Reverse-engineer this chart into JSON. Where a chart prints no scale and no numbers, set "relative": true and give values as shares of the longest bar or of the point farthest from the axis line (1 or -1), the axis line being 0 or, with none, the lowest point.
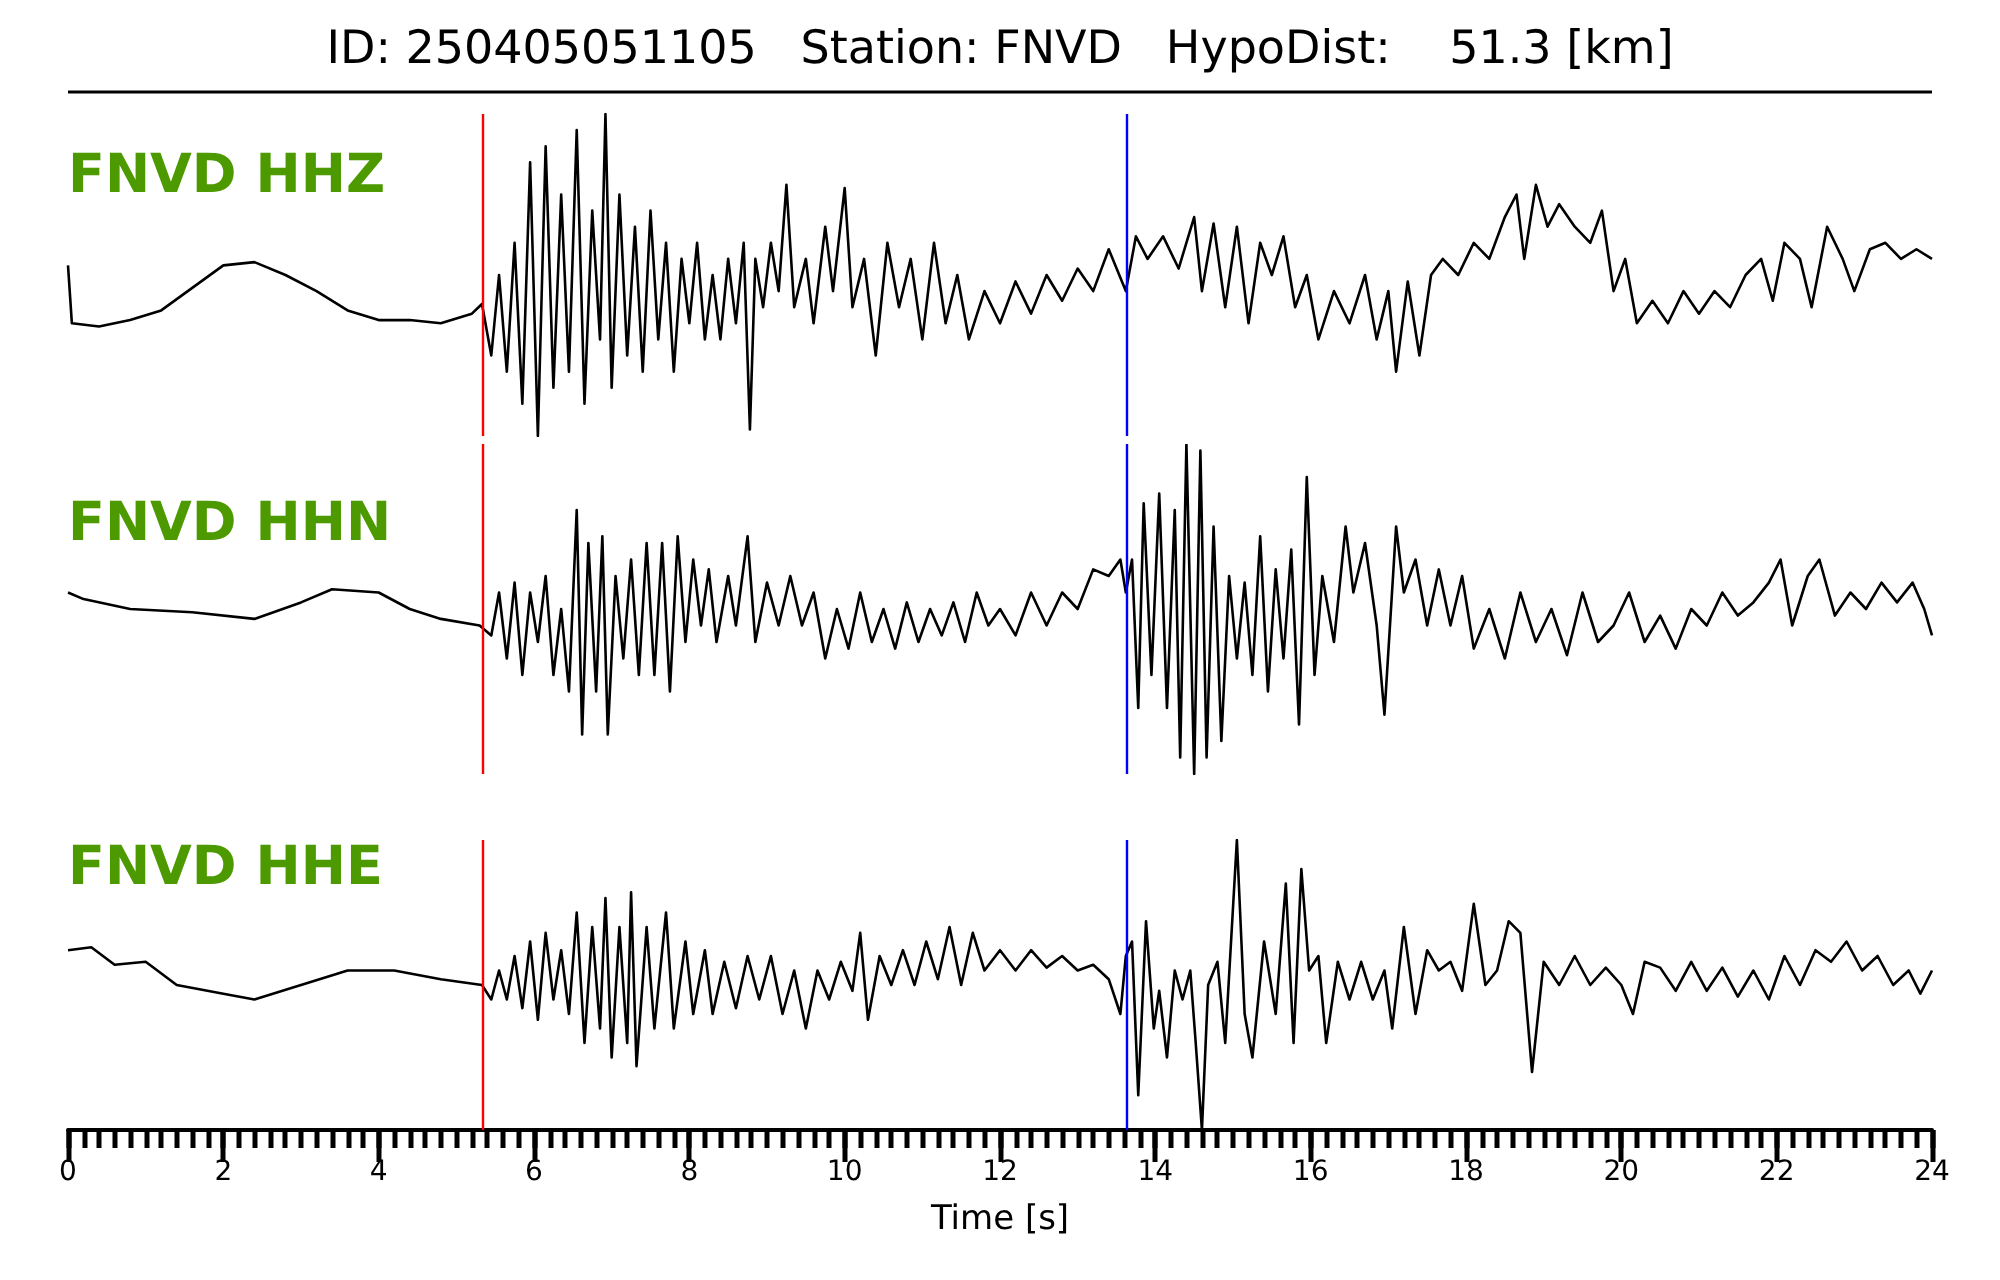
{
  "chart_data": [
    {
      "type": "line",
      "title": "ID: 250405051105   Station: FNVD   HypoDist:    51.3 [km]",
      "annotations": [
        "FNVD HHZ"
      ],
      "relative": true,
      "tick_labels": false,
      "xlim": [
        0,
        24
      ],
      "series": [
        {
          "color": "#000000",
          "x": [
            0,
            0.05,
            0.4,
            0.8,
            1.2,
            1.6,
            2.0,
            2.4,
            2.8,
            3.2,
            3.6,
            4.0,
            4.4,
            4.8,
            5.2,
            5.33,
            5.45,
            5.55,
            5.65,
            5.75,
            5.85,
            5.95,
            6.05,
            6.15,
            6.25,
            6.35,
            6.45,
            6.55,
            6.65,
            6.75,
            6.85,
            6.92,
            7.0,
            7.1,
            7.2,
            7.3,
            7.4,
            7.5,
            7.6,
            7.7,
            7.8,
            7.9,
            8.0,
            8.1,
            8.2,
            8.3,
            8.4,
            8.5,
            8.6,
            8.7,
            8.78,
            8.85,
            8.95,
            9.05,
            9.15,
            9.25,
            9.35,
            9.5,
            9.6,
            9.75,
            9.85,
            10.0,
            10.1,
            10.25,
            10.4,
            10.55,
            10.7,
            10.85,
            11.0,
            11.15,
            11.3,
            11.45,
            11.6,
            11.8,
            12.0,
            12.2,
            12.4,
            12.6,
            12.8,
            13.0,
            13.2,
            13.4,
            13.62,
            13.75,
            13.9,
            14.1,
            14.3,
            14.5,
            14.6,
            14.75,
            14.9,
            15.05,
            15.2,
            15.35,
            15.5,
            15.65,
            15.8,
            15.95,
            16.1,
            16.3,
            16.5,
            16.7,
            16.85,
            17.0,
            17.1,
            17.25,
            17.4,
            17.55,
            17.7,
            17.9,
            18.1,
            18.3,
            18.5,
            18.65,
            18.75,
            18.9,
            19.05,
            19.2,
            19.4,
            19.6,
            19.75,
            19.9,
            20.05,
            20.2,
            20.4,
            20.6,
            20.8,
            21.0,
            21.2,
            21.4,
            21.6,
            21.8,
            21.95,
            22.1,
            22.3,
            22.45,
            22.65,
            22.85,
            23.0,
            23.2,
            23.4,
            23.6,
            23.8,
            24.0
          ],
          "values": [
            0.53,
            0.35,
            0.34,
            0.36,
            0.39,
            0.46,
            0.53,
            0.54,
            0.5,
            0.45,
            0.39,
            0.36,
            0.36,
            0.35,
            0.38,
            0.41,
            0.25,
            0.5,
            0.2,
            0.6,
            0.1,
            0.85,
            0.0,
            0.9,
            0.15,
            0.75,
            0.2,
            0.95,
            0.1,
            0.7,
            0.3,
            1.0,
            0.15,
            0.75,
            0.25,
            0.65,
            0.2,
            0.7,
            0.3,
            0.6,
            0.2,
            0.55,
            0.35,
            0.6,
            0.3,
            0.5,
            0.3,
            0.55,
            0.35,
            0.6,
            0.02,
            0.55,
            0.4,
            0.6,
            0.45,
            0.78,
            0.4,
            0.55,
            0.35,
            0.65,
            0.45,
            0.77,
            0.4,
            0.55,
            0.25,
            0.6,
            0.4,
            0.55,
            0.3,
            0.6,
            0.35,
            0.5,
            0.3,
            0.45,
            0.35,
            0.48,
            0.38,
            0.5,
            0.42,
            0.52,
            0.45,
            0.58,
            0.45,
            0.62,
            0.55,
            0.62,
            0.52,
            0.68,
            0.45,
            0.66,
            0.4,
            0.65,
            0.35,
            0.6,
            0.5,
            0.62,
            0.4,
            0.5,
            0.3,
            0.45,
            0.35,
            0.5,
            0.3,
            0.45,
            0.2,
            0.48,
            0.25,
            0.5,
            0.55,
            0.5,
            0.6,
            0.55,
            0.68,
            0.75,
            0.55,
            0.78,
            0.65,
            0.72,
            0.65,
            0.6,
            0.7,
            0.45,
            0.55,
            0.35,
            0.42,
            0.35,
            0.45,
            0.38,
            0.45,
            0.4,
            0.5,
            0.55,
            0.42,
            0.6,
            0.55,
            0.4,
            0.65,
            0.55,
            0.45,
            0.58,
            0.6,
            0.55,
            0.58,
            0.55
          ]
        }
      ],
      "ref_lines": [
        {
          "axis": "x",
          "value": 5.33,
          "color": "#ff0000"
        },
        {
          "axis": "x",
          "value": 13.62,
          "color": "#0000ff"
        }
      ]
    },
    {
      "type": "line",
      "annotations": [
        "FNVD HHN"
      ],
      "relative": true,
      "tick_labels": false,
      "xlim": [
        0,
        24
      ],
      "series": [
        {
          "color": "#000000",
          "x": [
            0,
            0.2,
            0.8,
            1.6,
            2.4,
            3.0,
            3.4,
            4.0,
            4.4,
            4.8,
            5.3,
            5.45,
            5.55,
            5.65,
            5.75,
            5.85,
            5.95,
            6.05,
            6.15,
            6.25,
            6.35,
            6.45,
            6.55,
            6.62,
            6.7,
            6.8,
            6.88,
            6.95,
            7.05,
            7.15,
            7.25,
            7.35,
            7.45,
            7.55,
            7.65,
            7.75,
            7.85,
            7.95,
            8.05,
            8.15,
            8.25,
            8.35,
            8.5,
            8.6,
            8.75,
            8.85,
            9.0,
            9.15,
            9.3,
            9.45,
            9.6,
            9.75,
            9.9,
            10.05,
            10.2,
            10.35,
            10.5,
            10.65,
            10.8,
            10.95,
            11.1,
            11.25,
            11.4,
            11.55,
            11.7,
            11.85,
            12.0,
            12.2,
            12.4,
            12.6,
            12.8,
            13.0,
            13.2,
            13.4,
            13.55,
            13.62,
            13.7,
            13.78,
            13.85,
            13.95,
            14.05,
            14.15,
            14.25,
            14.32,
            14.4,
            14.5,
            14.58,
            14.66,
            14.75,
            14.85,
            14.95,
            15.05,
            15.15,
            15.25,
            15.35,
            15.45,
            15.55,
            15.65,
            15.75,
            15.85,
            15.95,
            16.05,
            16.15,
            16.3,
            16.45,
            16.55,
            16.7,
            16.85,
            16.95,
            17.1,
            17.2,
            17.35,
            17.5,
            17.65,
            17.8,
            17.95,
            18.1,
            18.3,
            18.5,
            18.7,
            18.9,
            19.1,
            19.3,
            19.5,
            19.7,
            19.9,
            20.1,
            20.3,
            20.5,
            20.7,
            20.9,
            21.1,
            21.3,
            21.5,
            21.7,
            21.9,
            22.05,
            22.2,
            22.4,
            22.55,
            22.75,
            22.95,
            23.15,
            23.35,
            23.55,
            23.75,
            23.9,
            24.0
          ],
          "values": [
            0.55,
            0.53,
            0.5,
            0.49,
            0.47,
            0.52,
            0.56,
            0.55,
            0.5,
            0.47,
            0.45,
            0.42,
            0.55,
            0.35,
            0.58,
            0.3,
            0.55,
            0.4,
            0.6,
            0.3,
            0.5,
            0.25,
            0.8,
            0.12,
            0.7,
            0.25,
            0.72,
            0.12,
            0.6,
            0.35,
            0.65,
            0.3,
            0.7,
            0.3,
            0.7,
            0.25,
            0.72,
            0.4,
            0.65,
            0.45,
            0.62,
            0.4,
            0.6,
            0.45,
            0.72,
            0.4,
            0.58,
            0.45,
            0.6,
            0.45,
            0.55,
            0.35,
            0.5,
            0.38,
            0.55,
            0.4,
            0.5,
            0.38,
            0.52,
            0.4,
            0.5,
            0.42,
            0.52,
            0.4,
            0.55,
            0.45,
            0.5,
            0.42,
            0.55,
            0.45,
            0.55,
            0.5,
            0.62,
            0.6,
            0.65,
            0.55,
            0.65,
            0.2,
            0.82,
            0.3,
            0.85,
            0.2,
            0.8,
            0.05,
            1.0,
            0.0,
            0.98,
            0.05,
            0.75,
            0.1,
            0.6,
            0.35,
            0.58,
            0.3,
            0.72,
            0.25,
            0.62,
            0.35,
            0.68,
            0.15,
            0.9,
            0.3,
            0.6,
            0.4,
            0.75,
            0.55,
            0.7,
            0.45,
            0.18,
            0.75,
            0.55,
            0.65,
            0.45,
            0.62,
            0.45,
            0.6,
            0.38,
            0.5,
            0.35,
            0.55,
            0.4,
            0.5,
            0.36,
            0.55,
            0.4,
            0.45,
            0.55,
            0.4,
            0.48,
            0.38,
            0.5,
            0.45,
            0.55,
            0.48,
            0.52,
            0.58,
            0.65,
            0.45,
            0.6,
            0.65,
            0.48,
            0.55,
            0.5,
            0.58,
            0.52,
            0.58,
            0.5,
            0.42
          ]
        }
      ],
      "ref_lines": [
        {
          "axis": "x",
          "value": 5.33,
          "color": "#ff0000"
        },
        {
          "axis": "x",
          "value": 13.62,
          "color": "#0000ff"
        }
      ]
    },
    {
      "type": "line",
      "annotations": [
        "FNVD HHE"
      ],
      "relative": true,
      "tick_labels": "x",
      "xlabel": "Time [s]",
      "xlim": [
        0,
        24
      ],
      "xticks": [
        0,
        {
          "value": 0.2,
          "label": null
        },
        {
          "value": 0.4,
          "label": null
        },
        {
          "value": 0.6,
          "label": null
        },
        {
          "value": 0.8,
          "label": null
        },
        {
          "value": 1,
          "label": null
        },
        {
          "value": 1.2,
          "label": null
        },
        {
          "value": 1.4,
          "label": null
        },
        {
          "value": 1.6,
          "label": null
        },
        {
          "value": 1.8,
          "label": null
        },
        2,
        {
          "value": 2.2,
          "label": null
        },
        {
          "value": 2.4,
          "label": null
        },
        {
          "value": 2.6,
          "label": null
        },
        {
          "value": 2.8,
          "label": null
        },
        {
          "value": 3,
          "label": null
        },
        {
          "value": 3.2,
          "label": null
        },
        {
          "value": 3.4,
          "label": null
        },
        {
          "value": 3.6,
          "label": null
        },
        {
          "value": 3.8,
          "label": null
        },
        4,
        {
          "value": 4.2,
          "label": null
        },
        {
          "value": 4.4,
          "label": null
        },
        {
          "value": 4.6,
          "label": null
        },
        {
          "value": 4.8,
          "label": null
        },
        {
          "value": 5,
          "label": null
        },
        {
          "value": 5.2,
          "label": null
        },
        {
          "value": 5.4,
          "label": null
        },
        {
          "value": 5.6,
          "label": null
        },
        {
          "value": 5.8,
          "label": null
        },
        6,
        {
          "value": 6.2,
          "label": null
        },
        {
          "value": 6.4,
          "label": null
        },
        {
          "value": 6.6,
          "label": null
        },
        {
          "value": 6.8,
          "label": null
        },
        {
          "value": 7,
          "label": null
        },
        {
          "value": 7.2,
          "label": null
        },
        {
          "value": 7.4,
          "label": null
        },
        {
          "value": 7.6,
          "label": null
        },
        {
          "value": 7.8,
          "label": null
        },
        8,
        {
          "value": 8.2,
          "label": null
        },
        {
          "value": 8.4,
          "label": null
        },
        {
          "value": 8.6,
          "label": null
        },
        {
          "value": 8.8,
          "label": null
        },
        {
          "value": 9,
          "label": null
        },
        {
          "value": 9.2,
          "label": null
        },
        {
          "value": 9.4,
          "label": null
        },
        {
          "value": 9.6,
          "label": null
        },
        {
          "value": 9.8,
          "label": null
        },
        10,
        {
          "value": 10.2,
          "label": null
        },
        {
          "value": 10.4,
          "label": null
        },
        {
          "value": 10.6,
          "label": null
        },
        {
          "value": 10.8,
          "label": null
        },
        {
          "value": 11,
          "label": null
        },
        {
          "value": 11.2,
          "label": null
        },
        {
          "value": 11.4,
          "label": null
        },
        {
          "value": 11.6,
          "label": null
        },
        {
          "value": 11.8,
          "label": null
        },
        12,
        {
          "value": 12.2,
          "label": null
        },
        {
          "value": 12.4,
          "label": null
        },
        {
          "value": 12.6,
          "label": null
        },
        {
          "value": 12.8,
          "label": null
        },
        {
          "value": 13,
          "label": null
        },
        {
          "value": 13.2,
          "label": null
        },
        {
          "value": 13.4,
          "label": null
        },
        {
          "value": 13.6,
          "label": null
        },
        {
          "value": 13.8,
          "label": null
        },
        14,
        {
          "value": 14.2,
          "label": null
        },
        {
          "value": 14.4,
          "label": null
        },
        {
          "value": 14.6,
          "label": null
        },
        {
          "value": 14.8,
          "label": null
        },
        {
          "value": 15,
          "label": null
        },
        {
          "value": 15.2,
          "label": null
        },
        {
          "value": 15.4,
          "label": null
        },
        {
          "value": 15.6,
          "label": null
        },
        {
          "value": 15.8,
          "label": null
        },
        16,
        {
          "value": 16.2,
          "label": null
        },
        {
          "value": 16.4,
          "label": null
        },
        {
          "value": 16.6,
          "label": null
        },
        {
          "value": 16.8,
          "label": null
        },
        {
          "value": 17,
          "label": null
        },
        {
          "value": 17.2,
          "label": null
        },
        {
          "value": 17.4,
          "label": null
        },
        {
          "value": 17.6,
          "label": null
        },
        {
          "value": 17.8,
          "label": null
        },
        18,
        {
          "value": 18.2,
          "label": null
        },
        {
          "value": 18.4,
          "label": null
        },
        {
          "value": 18.6,
          "label": null
        },
        {
          "value": 18.8,
          "label": null
        },
        {
          "value": 19,
          "label": null
        },
        {
          "value": 19.2,
          "label": null
        },
        {
          "value": 19.4,
          "label": null
        },
        {
          "value": 19.6,
          "label": null
        },
        {
          "value": 19.8,
          "label": null
        },
        20,
        {
          "value": 20.2,
          "label": null
        },
        {
          "value": 20.4,
          "label": null
        },
        {
          "value": 20.6,
          "label": null
        },
        {
          "value": 20.8,
          "label": null
        },
        {
          "value": 21,
          "label": null
        },
        {
          "value": 21.2,
          "label": null
        },
        {
          "value": 21.4,
          "label": null
        },
        {
          "value": 21.6,
          "label": null
        },
        {
          "value": 21.8,
          "label": null
        },
        22,
        {
          "value": 22.2,
          "label": null
        },
        {
          "value": 22.4,
          "label": null
        },
        {
          "value": 22.6,
          "label": null
        },
        {
          "value": 22.8,
          "label": null
        },
        {
          "value": 23,
          "label": null
        },
        {
          "value": 23.2,
          "label": null
        },
        {
          "value": 23.4,
          "label": null
        },
        {
          "value": 23.6,
          "label": null
        },
        {
          "value": 23.8,
          "label": null
        },
        24
      ],
      "series": [
        {
          "color": "#000000",
          "x": [
            0,
            0.3,
            0.6,
            1.0,
            1.4,
            2.0,
            2.4,
            3.0,
            3.6,
            4.2,
            4.8,
            5.33,
            5.45,
            5.55,
            5.65,
            5.75,
            5.85,
            5.95,
            6.05,
            6.15,
            6.25,
            6.35,
            6.45,
            6.55,
            6.65,
            6.75,
            6.85,
            6.92,
            7.0,
            7.1,
            7.2,
            7.25,
            7.32,
            7.45,
            7.55,
            7.7,
            7.8,
            7.95,
            8.05,
            8.2,
            8.3,
            8.45,
            8.6,
            8.75,
            8.9,
            9.05,
            9.2,
            9.35,
            9.5,
            9.65,
            9.8,
            9.95,
            10.1,
            10.2,
            10.3,
            10.45,
            10.6,
            10.75,
            10.9,
            11.05,
            11.2,
            11.35,
            11.5,
            11.65,
            11.8,
            12.0,
            12.2,
            12.4,
            12.6,
            12.8,
            13.0,
            13.2,
            13.4,
            13.55,
            13.62,
            13.7,
            13.78,
            13.88,
            13.98,
            14.05,
            14.15,
            14.25,
            14.35,
            14.45,
            14.52,
            14.6,
            14.68,
            14.8,
            14.9,
            15.05,
            15.15,
            15.25,
            15.4,
            15.55,
            15.68,
            15.78,
            15.88,
            15.98,
            16.1,
            16.2,
            16.35,
            16.5,
            16.65,
            16.8,
            16.95,
            17.05,
            17.2,
            17.35,
            17.5,
            17.65,
            17.8,
            17.95,
            18.1,
            18.25,
            18.4,
            18.55,
            18.7,
            18.85,
            19.0,
            19.2,
            19.4,
            19.6,
            19.8,
            20.0,
            20.15,
            20.3,
            20.5,
            20.7,
            20.9,
            21.1,
            21.3,
            21.5,
            21.7,
            21.9,
            22.1,
            22.3,
            22.5,
            22.7,
            22.9,
            23.1,
            23.3,
            23.5,
            23.7,
            23.85,
            24.0
          ],
          "values": [
            0.62,
            0.63,
            0.57,
            0.58,
            0.5,
            0.47,
            0.45,
            0.5,
            0.55,
            0.55,
            0.52,
            0.5,
            0.45,
            0.55,
            0.45,
            0.6,
            0.42,
            0.65,
            0.38,
            0.68,
            0.45,
            0.62,
            0.4,
            0.75,
            0.3,
            0.7,
            0.35,
            0.8,
            0.25,
            0.7,
            0.3,
            0.82,
            0.22,
            0.7,
            0.35,
            0.75,
            0.35,
            0.65,
            0.4,
            0.62,
            0.4,
            0.58,
            0.42,
            0.6,
            0.45,
            0.6,
            0.4,
            0.55,
            0.35,
            0.55,
            0.45,
            0.58,
            0.48,
            0.68,
            0.38,
            0.6,
            0.5,
            0.62,
            0.5,
            0.65,
            0.52,
            0.7,
            0.5,
            0.68,
            0.55,
            0.62,
            0.55,
            0.62,
            0.56,
            0.6,
            0.55,
            0.57,
            0.52,
            0.4,
            0.6,
            0.65,
            0.12,
            0.72,
            0.35,
            0.48,
            0.25,
            0.55,
            0.45,
            0.55,
            0.3,
            0.0,
            0.5,
            0.58,
            0.3,
            1.0,
            0.4,
            0.25,
            0.65,
            0.4,
            0.85,
            0.3,
            0.9,
            0.55,
            0.6,
            0.3,
            0.58,
            0.45,
            0.58,
            0.45,
            0.55,
            0.35,
            0.7,
            0.4,
            0.62,
            0.55,
            0.58,
            0.48,
            0.78,
            0.5,
            0.55,
            0.72,
            0.68,
            0.2,
            0.58,
            0.5,
            0.6,
            0.5,
            0.56,
            0.5,
            0.4,
            0.58,
            0.56,
            0.48,
            0.58,
            0.48,
            0.56,
            0.46,
            0.55,
            0.45,
            0.6,
            0.5,
            0.62,
            0.58,
            0.65,
            0.55,
            0.6,
            0.5,
            0.55,
            0.47,
            0.55
          ]
        }
      ],
      "ref_lines": [
        {
          "axis": "x",
          "value": 5.33,
          "color": "#ff0000"
        },
        {
          "axis": "x",
          "value": 13.62,
          "color": "#0000ff"
        }
      ]
    }
  ]
}
